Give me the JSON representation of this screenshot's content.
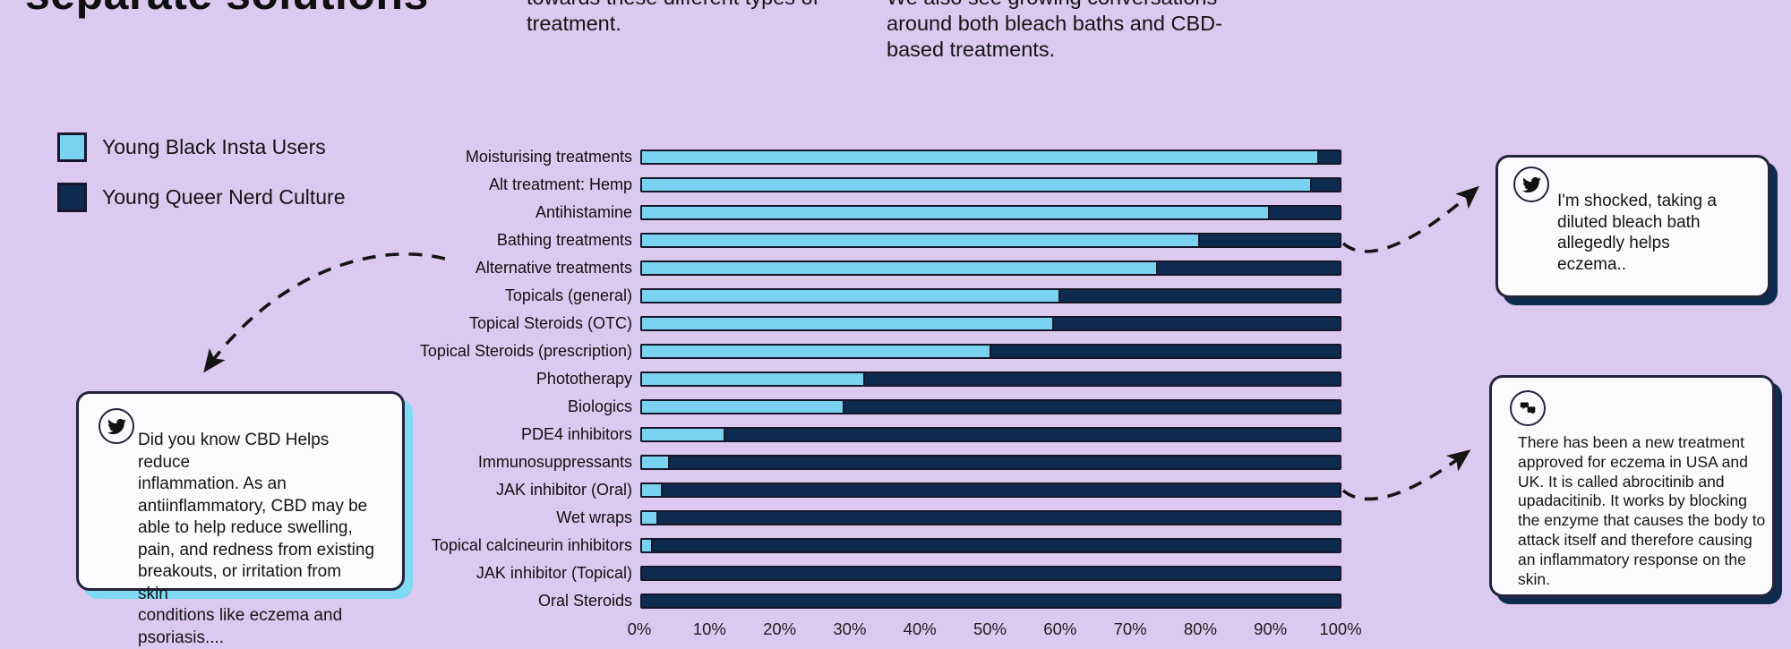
{
  "page": {
    "title_fragment": "separate solutions",
    "intro_col1": "towards these different types of\ntreatment.",
    "intro_col2": "We also see growing conversations\naround both bleach baths and CBD-\nbased treatments."
  },
  "legend": [
    {
      "label": "Young Black Insta Users",
      "color": "#79d2ef"
    },
    {
      "label": "Young Queer Nerd Culture",
      "color": "#0d2a4f"
    }
  ],
  "chart_data": {
    "type": "bar",
    "orientation": "horizontal",
    "stacked": true,
    "categories": [
      "Moisturising treatments",
      "Alt treatment: Hemp",
      "Antihistamine",
      "Bathing treatments",
      "Alternative treatments",
      "Topicals (general)",
      "Topical Steroids (OTC)",
      "Topical Steroids (prescription)",
      "Phototherapy",
      "Biologics",
      "PDE4 inhibitors",
      "Immunosuppressants",
      "JAK inhibitor (Oral)",
      "Wet wraps",
      "Topical calcineurin inhibitors",
      "JAK inhibitor (Topical)",
      "Oral Steroids"
    ],
    "series": [
      {
        "name": "Young Black Insta Users",
        "color": "#79d2ef",
        "values": [
          97,
          96,
          90,
          80,
          74,
          60,
          59,
          50,
          32,
          29,
          12,
          4,
          3,
          2.3,
          1.6,
          0,
          0
        ]
      },
      {
        "name": "Young Queer Nerd Culture",
        "color": "#0d2a4f",
        "values": [
          3,
          4,
          10,
          20,
          26,
          40,
          41,
          50,
          68,
          71,
          88,
          96,
          97,
          97.7,
          98.4,
          100,
          100
        ]
      }
    ],
    "x_ticks": [
      "0%",
      "10%",
      "20%",
      "30%",
      "40%",
      "50%",
      "60%",
      "70%",
      "80%",
      "90%",
      "100%"
    ],
    "xlim": [
      0,
      100
    ],
    "grid": false,
    "legend_position": "top-left"
  },
  "callouts": {
    "left": {
      "icon": "twitter-bird-icon",
      "shadow_color": "#7fdbf2",
      "text": "Did you know CBD Helps reduce\ninflammation. As an\nantiinflammatory, CBD may be\nable to help reduce swelling,\npain, and redness from existing\nbreakouts, or irritation from skin\nconditions like eczema and\npsoriasis...."
    },
    "top_right": {
      "icon": "twitter-bird-icon",
      "shadow_color": "#0d2a4f",
      "text": "I'm shocked, taking a\ndiluted bleach bath\nallegedly helps\neczema.."
    },
    "bottom_right": {
      "icon": "chat-bubbles-icon",
      "shadow_color": "#0d2a4f",
      "text": "There has been a new treatment\napproved for eczema in USA and\nUK. It is called abrocitinib and\nupadacitinib. It works by blocking\nthe enzyme that causes the body to\nattack itself and therefore causing\nan inflammatory response on the\nskin."
    }
  },
  "colors": {
    "background": "#dcc9ef",
    "bar_border": "#17172b",
    "callout_background": "#fbfbfd",
    "text": "#141414"
  }
}
